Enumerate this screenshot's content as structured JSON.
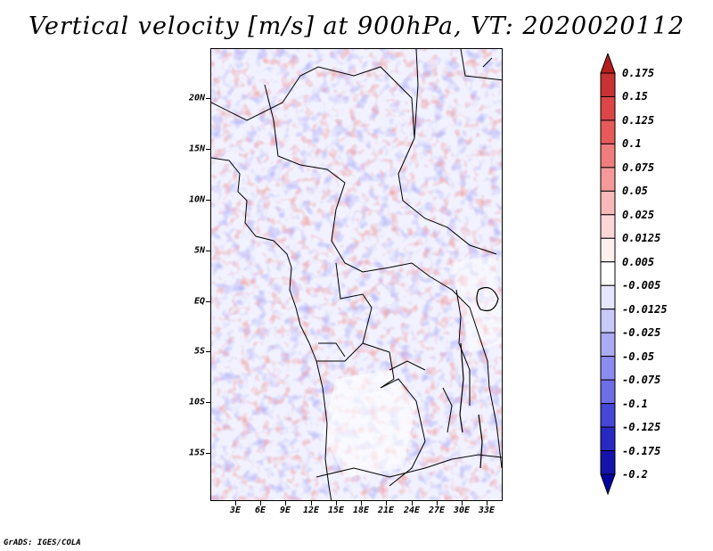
{
  "title": "Vertical velocity [m/s] at 900hPa, VT: 2020020112",
  "credit": "GrADS: IGES/COLA",
  "map": {
    "lat_labels": [
      "20N",
      "15N",
      "10N",
      "5N",
      "EQ",
      "5S",
      "10S",
      "15S"
    ],
    "lon_labels": [
      "3E",
      "6E",
      "9E",
      "12E",
      "15E",
      "18E",
      "21E",
      "24E",
      "27E",
      "30E",
      "33E"
    ]
  },
  "colorbar": {
    "labels": [
      "0.175",
      "0.15",
      "0.125",
      "0.1",
      "0.075",
      "0.05",
      "0.025",
      "0.0125",
      "0.005",
      "-0.005",
      "-0.0125",
      "-0.025",
      "-0.05",
      "-0.075",
      "-0.1",
      "-0.125",
      "-0.175",
      "-0.2"
    ],
    "colors": [
      "#b41e1e",
      "#c83232",
      "#dc4646",
      "#e65a5a",
      "#ef7d7d",
      "#f59a9a",
      "#fab9b9",
      "#fdd7d7",
      "#fff0f0",
      "#ffffff",
      "#e6e6ff",
      "#c8c8fa",
      "#aaaaf5",
      "#8c8cf0",
      "#6e6ee6",
      "#4646d7",
      "#2828c3",
      "#1414aa",
      "#0000a0"
    ]
  }
}
